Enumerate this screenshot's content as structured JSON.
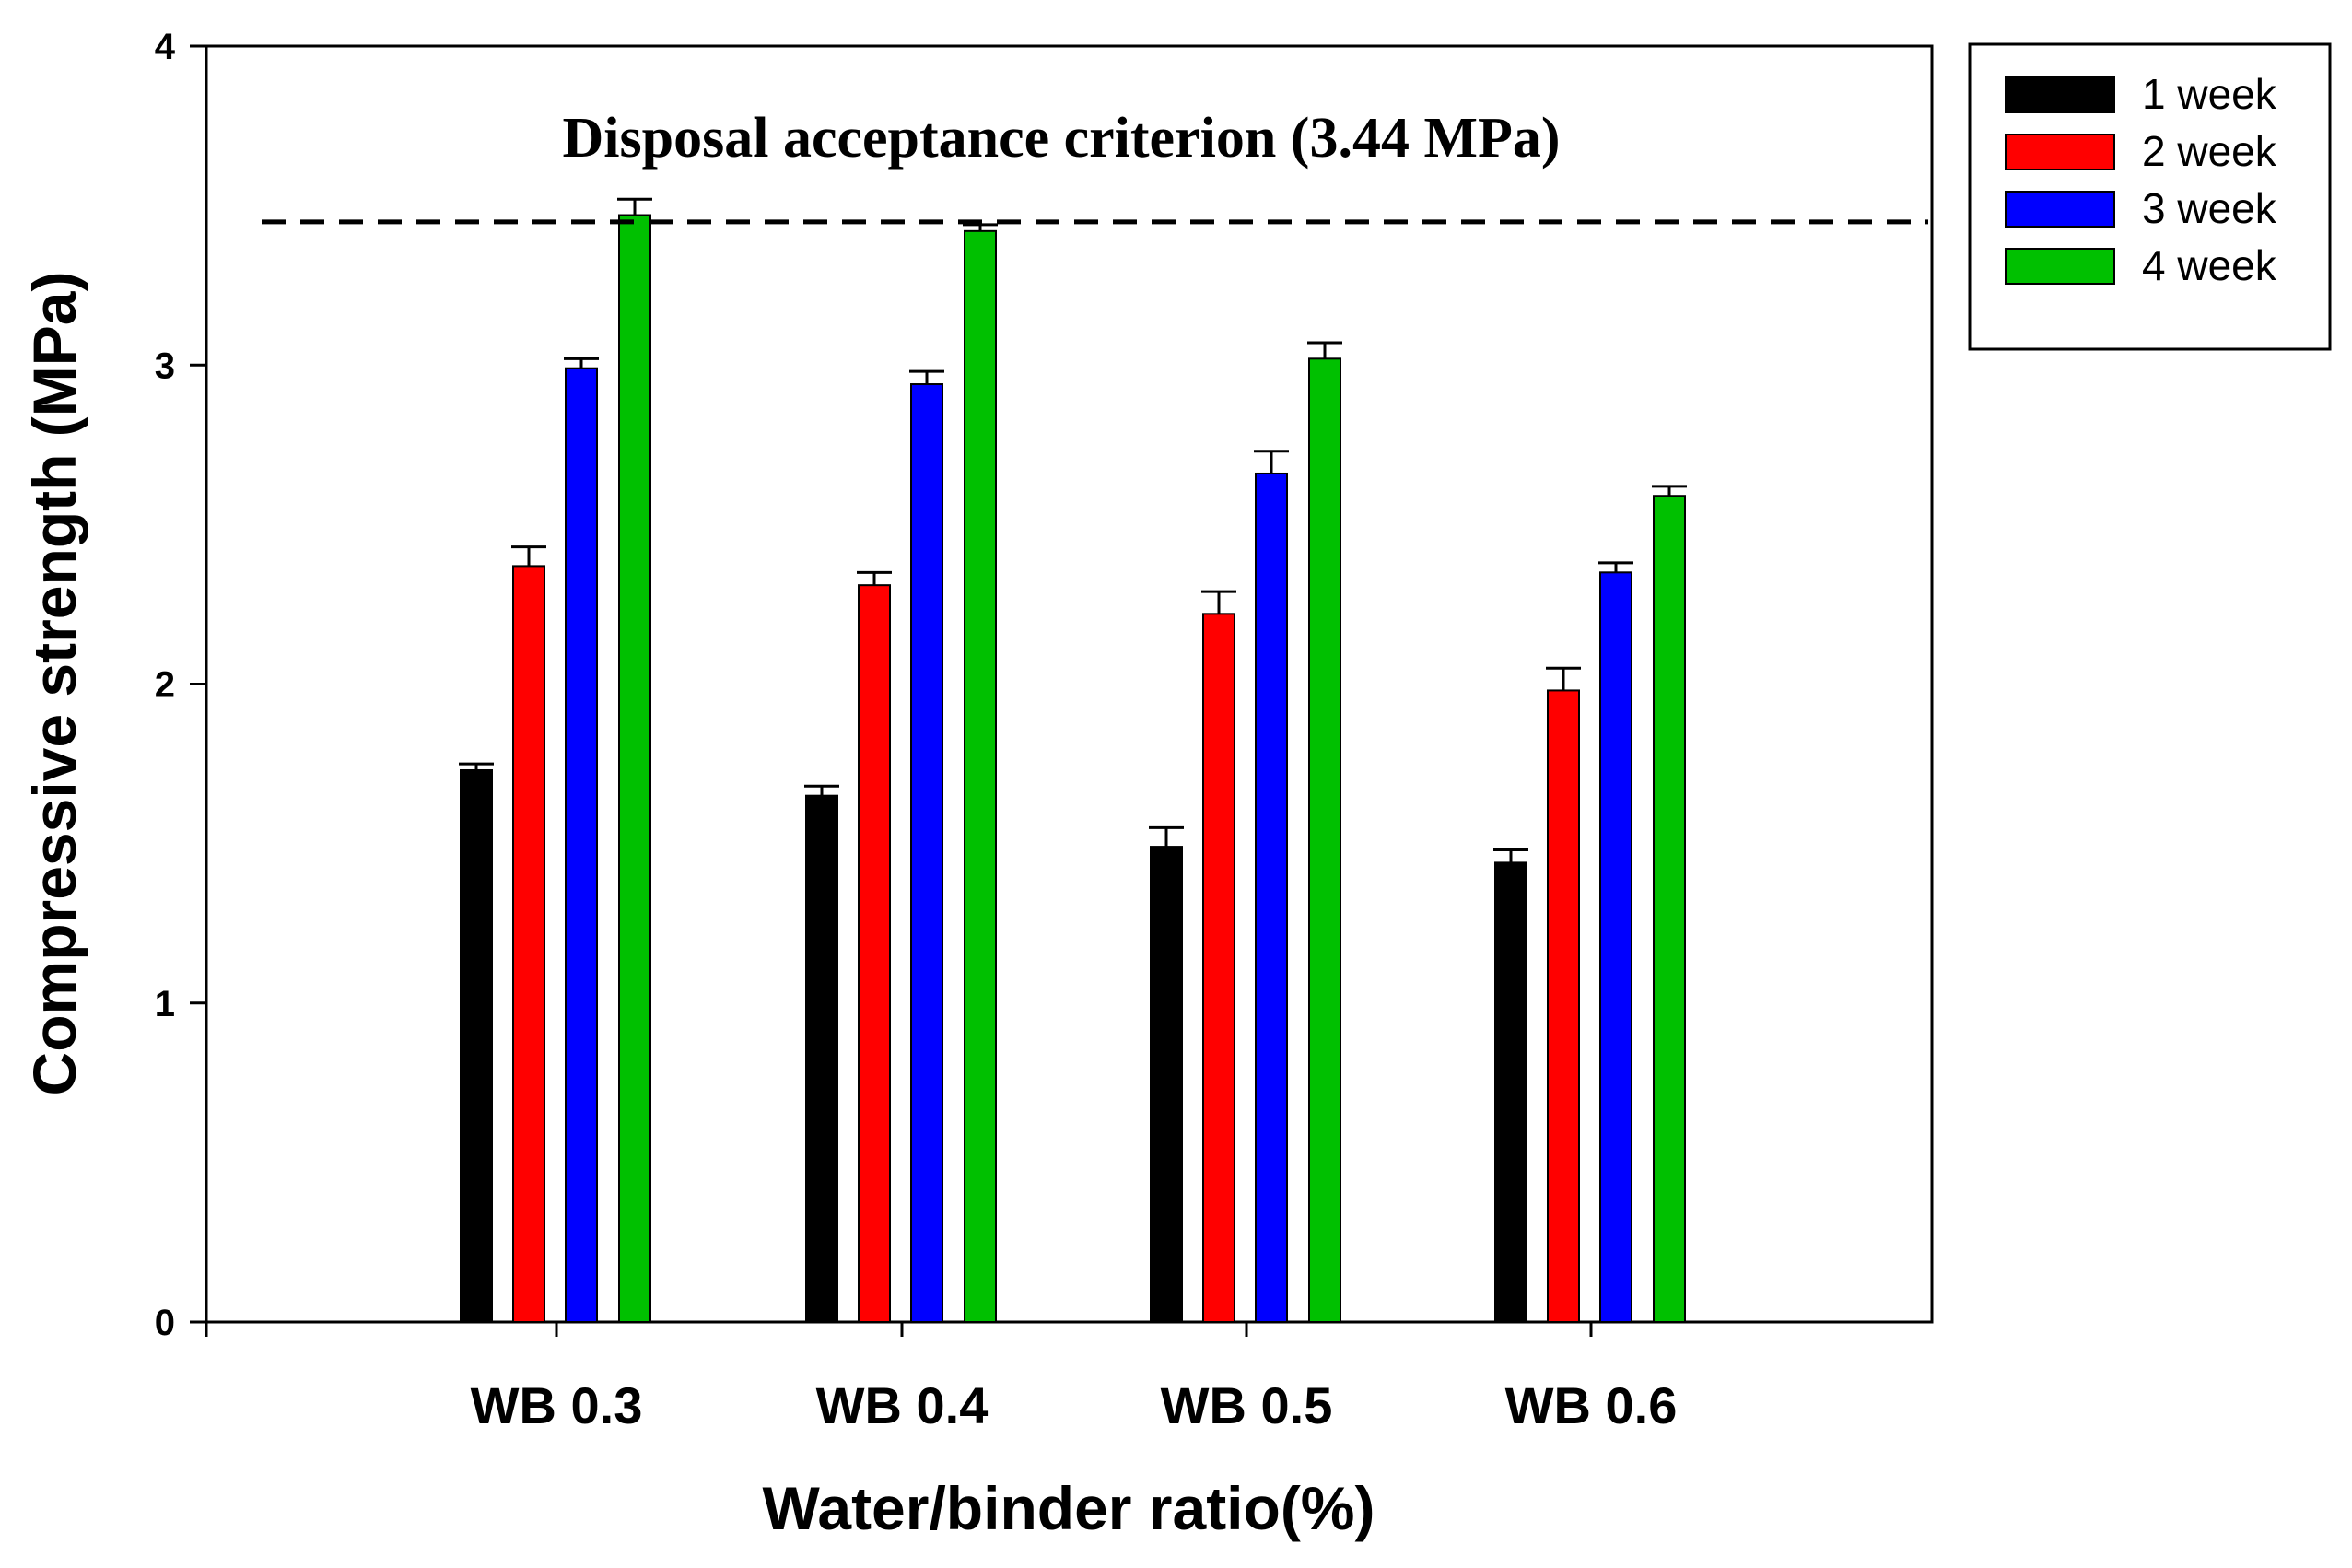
{
  "chart_data": {
    "type": "bar",
    "title": "",
    "xlabel": "Water/binder ratio(%)",
    "ylabel": "Compressive strength (MPa)",
    "ylim": [
      0,
      4
    ],
    "yticks": [
      0,
      1,
      2,
      3,
      4
    ],
    "categories": [
      "WB 0.3",
      "WB 0.4",
      "WB 0.5",
      "WB 0.6"
    ],
    "series": [
      {
        "name": "1 week",
        "color": "#000000",
        "values": [
          1.73,
          1.65,
          1.49,
          1.44
        ],
        "errors": [
          0.02,
          0.03,
          0.06,
          0.04
        ]
      },
      {
        "name": "2 week",
        "color": "#ff0000",
        "values": [
          2.37,
          2.31,
          2.22,
          1.98
        ],
        "errors": [
          0.06,
          0.04,
          0.07,
          0.07
        ]
      },
      {
        "name": "3 week",
        "color": "#0000ff",
        "values": [
          2.99,
          2.94,
          2.66,
          2.35
        ],
        "errors": [
          0.03,
          0.04,
          0.07,
          0.03
        ]
      },
      {
        "name": "4 week",
        "color": "#00c000",
        "values": [
          3.47,
          3.42,
          3.02,
          2.59
        ],
        "errors": [
          0.05,
          0.02,
          0.05,
          0.03
        ]
      }
    ],
    "reference_line": {
      "label": "Disposal acceptance criterion (3.44 MPa)",
      "value": 3.44,
      "style": "dashed"
    },
    "legend_position": "top-right, outside plot",
    "grid": false
  }
}
